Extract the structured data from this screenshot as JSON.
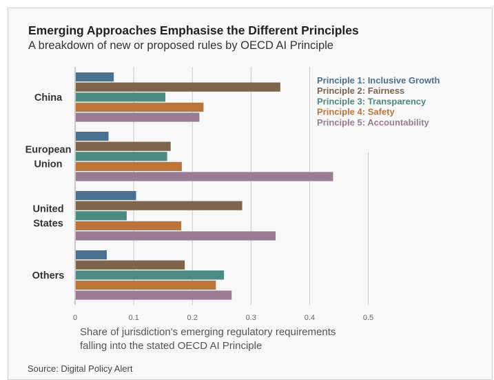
{
  "title": "Emerging Approaches Emphasise the Different Principles",
  "subtitle": "A breakdown of new or proposed rules by OECD AI Principle",
  "xlabel_line1": "Share of jurisdiction's emerging regulatory requirements",
  "xlabel_line2": "falling into the stated OECD AI Principle",
  "source": "Source: Digital Policy Alert",
  "chart_data": {
    "type": "bar",
    "orientation": "horizontal",
    "title": "Emerging Approaches Emphasise the Different Principles",
    "subtitle": "A breakdown of new or proposed rules by OECD AI Principle",
    "xlabel": "Share of jurisdiction's emerging regulatory requirements falling into the stated OECD AI Principle",
    "ylabel": "",
    "xlim": [
      0,
      0.5
    ],
    "xticks": [
      0,
      0.1,
      0.2,
      0.3,
      0.4,
      0.5
    ],
    "xtick_labels": [
      "0",
      "0.1",
      "0.2",
      "0.3",
      "0.4",
      "0.5"
    ],
    "grid": "vertical",
    "legend_position": "top-right",
    "categories": [
      [
        "China"
      ],
      [
        "European",
        "Union"
      ],
      [
        "United",
        "States"
      ],
      [
        "Others"
      ]
    ],
    "series": [
      {
        "name": "Principle 1: Inclusive Growth",
        "color": "#4a7191",
        "values": [
          0.066,
          0.057,
          0.104,
          0.054
        ]
      },
      {
        "name": "Principle 2: Fairness",
        "color": "#7d644a",
        "values": [
          0.35,
          0.163,
          0.285,
          0.187
        ]
      },
      {
        "name": "Principle 3: Transparency",
        "color": "#4d8a84",
        "values": [
          0.154,
          0.157,
          0.088,
          0.254
        ]
      },
      {
        "name": "Principle 4: Safety",
        "color": "#bd7438",
        "values": [
          0.219,
          0.182,
          0.181,
          0.24
        ]
      },
      {
        "name": "Principle 5: Accountability",
        "color": "#9b7b93",
        "values": [
          0.212,
          0.44,
          0.342,
          0.267
        ]
      }
    ]
  }
}
